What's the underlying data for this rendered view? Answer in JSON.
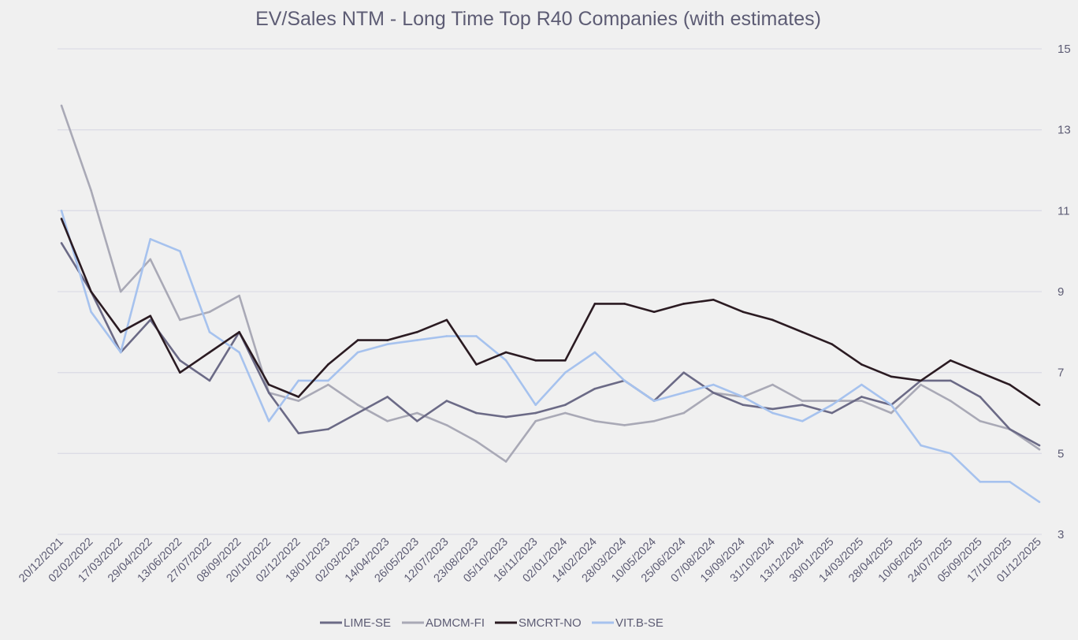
{
  "chart_data": {
    "type": "line",
    "title": "EV/Sales NTM - Long Time Top R40 Companies (with estimates)",
    "xlabel": "",
    "ylabel": "",
    "ylim": [
      3,
      15
    ],
    "yticks": [
      "3",
      "5",
      "7",
      "9",
      "11",
      "13",
      "15"
    ],
    "y_axis_position": "right",
    "grid": true,
    "legend_position": "bottom",
    "categories": [
      "20/12/2021",
      "02/02/2022",
      "17/03/2022",
      "29/04/2022",
      "13/06/2022",
      "27/07/2022",
      "08/09/2022",
      "20/10/2022",
      "02/12/2022",
      "18/01/2023",
      "02/03/2023",
      "14/04/2023",
      "26/05/2023",
      "12/07/2023",
      "23/08/2023",
      "05/10/2023",
      "16/11/2023",
      "02/01/2024",
      "14/02/2024",
      "28/03/2024",
      "10/05/2024",
      "25/06/2024",
      "07/08/2024",
      "19/09/2024",
      "31/10/2024",
      "13/12/2024",
      "30/01/2025",
      "14/03/2025",
      "28/04/2025",
      "10/06/2025",
      "24/07/2025",
      "05/09/2025",
      "17/10/2025",
      "01/12/2025"
    ],
    "series": [
      {
        "name": "LIME-SE",
        "color": "#6b6a86",
        "values": [
          10.2,
          9.0,
          7.5,
          8.3,
          7.3,
          6.8,
          8.0,
          6.5,
          5.5,
          5.6,
          6.0,
          6.4,
          5.8,
          6.3,
          6.0,
          5.9,
          6.0,
          6.2,
          6.6,
          6.8,
          6.3,
          7.0,
          6.5,
          6.2,
          6.1,
          6.2,
          6.0,
          6.4,
          6.2,
          6.8,
          6.8,
          6.4,
          5.6,
          5.2
        ]
      },
      {
        "name": "ADMCM-FI",
        "color": "#a9a9b6",
        "values": [
          13.6,
          11.5,
          9.0,
          9.8,
          8.3,
          8.5,
          8.9,
          6.5,
          6.3,
          6.7,
          6.2,
          5.8,
          6.0,
          5.7,
          5.3,
          4.8,
          5.8,
          6.0,
          5.8,
          5.7,
          5.8,
          6.0,
          6.5,
          6.4,
          6.7,
          6.3,
          6.3,
          6.3,
          6.0,
          6.7,
          6.3,
          5.8,
          5.6,
          5.1
        ]
      },
      {
        "name": "SMCRT-NO",
        "color": "#2b1b22",
        "values": [
          10.8,
          9.0,
          8.0,
          8.4,
          7.0,
          7.5,
          8.0,
          6.7,
          6.4,
          7.2,
          7.8,
          7.8,
          8.0,
          8.3,
          7.2,
          7.5,
          7.3,
          7.3,
          8.7,
          8.7,
          8.5,
          8.7,
          8.8,
          8.5,
          8.3,
          8.0,
          7.7,
          7.2,
          6.9,
          6.8,
          7.3,
          7.0,
          6.7,
          6.2
        ]
      },
      {
        "name": "VIT.B-SE",
        "color": "#a6c2ee",
        "values": [
          11.0,
          8.5,
          7.5,
          10.3,
          10.0,
          8.0,
          7.5,
          5.8,
          6.8,
          6.8,
          7.5,
          7.7,
          7.8,
          7.9,
          7.9,
          7.3,
          6.2,
          7.0,
          7.5,
          6.8,
          6.3,
          6.5,
          6.7,
          6.4,
          6.0,
          5.8,
          6.2,
          6.7,
          6.2,
          5.2,
          5.0,
          4.3,
          4.3,
          3.8
        ]
      }
    ]
  }
}
